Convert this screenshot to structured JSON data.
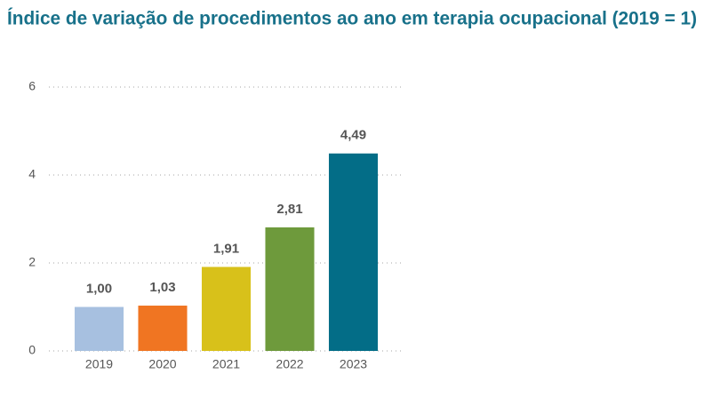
{
  "chart_data": {
    "type": "bar",
    "title": "Índice de variação de procedimentos ao ano em terapia ocupacional (2019 = 1)",
    "categories": [
      "2019",
      "2020",
      "2021",
      "2022",
      "2023"
    ],
    "values": [
      1.0,
      1.03,
      1.91,
      2.81,
      4.49
    ],
    "value_labels": [
      "1,00",
      "1,03",
      "1,91",
      "2,81",
      "4,49"
    ],
    "colors": [
      "#a7c0e0",
      "#f07522",
      "#d8c11a",
      "#6e9a3c",
      "#036d87"
    ],
    "ylim": [
      0,
      6
    ],
    "yticks": [
      0,
      2,
      4,
      6
    ],
    "grid": true
  }
}
